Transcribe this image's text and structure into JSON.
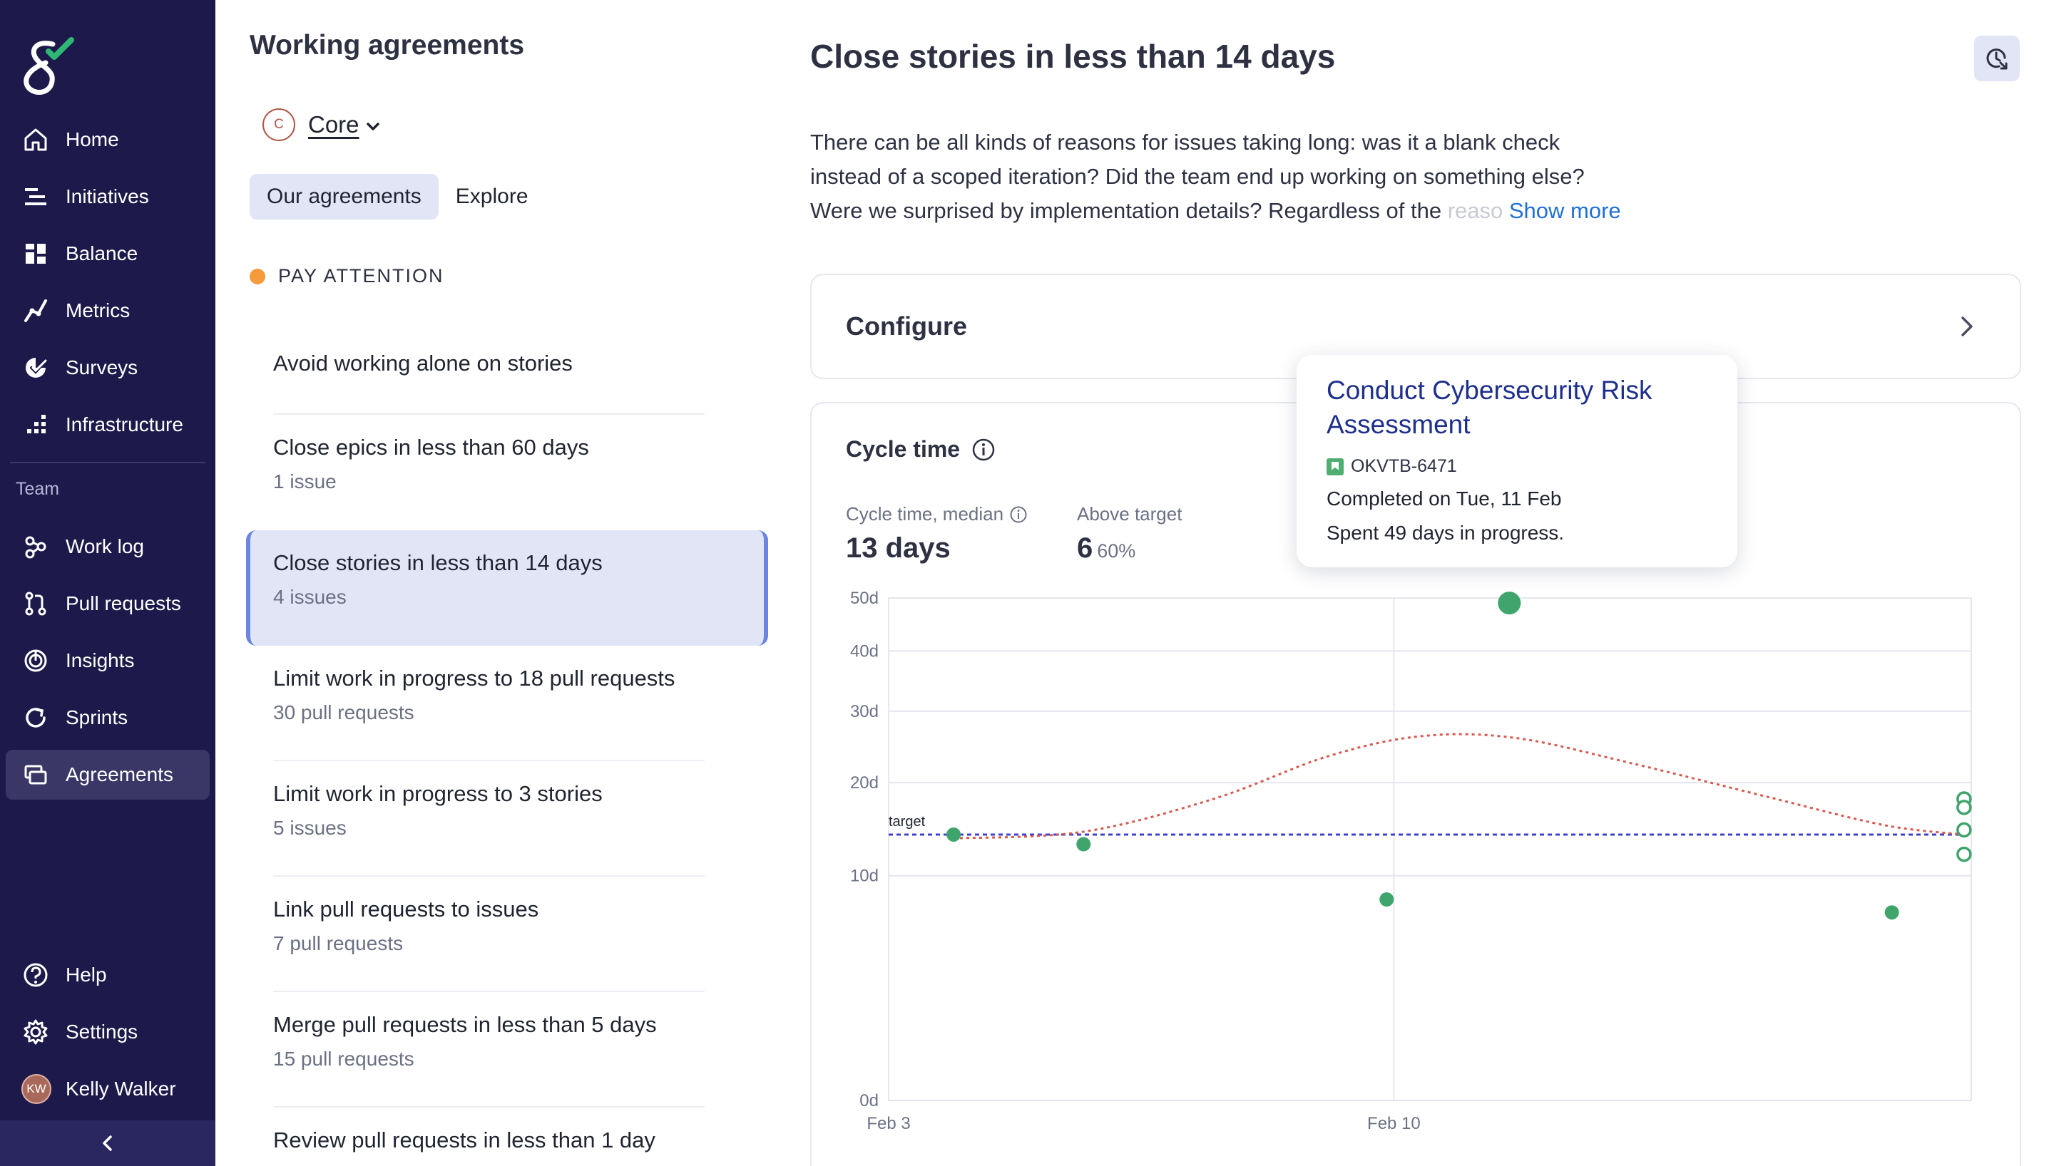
{
  "sidebar": {
    "nav": [
      {
        "label": "Home",
        "icon": "home-icon"
      },
      {
        "label": "Initiatives",
        "icon": "initiatives-icon"
      },
      {
        "label": "Balance",
        "icon": "balance-icon"
      },
      {
        "label": "Metrics",
        "icon": "metrics-icon"
      },
      {
        "label": "Surveys",
        "icon": "surveys-icon"
      },
      {
        "label": "Infrastructure",
        "icon": "infrastructure-icon"
      }
    ],
    "section_label": "Team",
    "team_nav": [
      {
        "label": "Work log",
        "icon": "work-log-icon"
      },
      {
        "label": "Pull requests",
        "icon": "pull-request-icon"
      },
      {
        "label": "Insights",
        "icon": "insights-icon"
      },
      {
        "label": "Sprints",
        "icon": "sprints-icon"
      },
      {
        "label": "Agreements",
        "icon": "agreements-icon",
        "active": true
      }
    ],
    "bottom": [
      {
        "label": "Help",
        "icon": "help-icon"
      },
      {
        "label": "Settings",
        "icon": "settings-icon"
      }
    ],
    "user": {
      "initials": "KW",
      "name": "Kelly Walker"
    },
    "colors": {
      "background": "#1d1a4b",
      "active": "#3a3766",
      "logo_accent": "#2fb874"
    }
  },
  "agreements_panel": {
    "title": "Working agreements",
    "team": {
      "initial": "C",
      "name": "Core"
    },
    "tabs": [
      {
        "label": "Our agreements",
        "active": true
      },
      {
        "label": "Explore",
        "active": false
      }
    ],
    "group_label": "PAY ATTENTION",
    "items": [
      {
        "title": "Avoid working alone on stories",
        "subtitle": ""
      },
      {
        "title": "Close epics in less than 60 days",
        "subtitle": "1 issue"
      },
      {
        "title": "Close stories in less than 14 days",
        "subtitle": "4 issues",
        "selected": true
      },
      {
        "title": "Limit work in progress to 18 pull requests",
        "subtitle": "30 pull requests"
      },
      {
        "title": "Limit work in progress to 3 stories",
        "subtitle": "5 issues"
      },
      {
        "title": "Link pull requests to issues",
        "subtitle": "7 pull requests"
      },
      {
        "title": "Merge pull requests in less than 5 days",
        "subtitle": "15 pull requests"
      },
      {
        "title": "Review pull requests in less than 1 day",
        "subtitle": ""
      }
    ]
  },
  "detail": {
    "title": "Close stories in less than 14 days",
    "description_lines": [
      "There can be all kinds of reasons for issues taking long: was it a blank check",
      "instead of a scoped iteration? Did the team end up working on something else?",
      "Were we surprised by implementation details? Regardless of the "
    ],
    "description_fade": "reaso",
    "show_more": "Show more",
    "configure_label": "Configure",
    "chart": {
      "title": "Cycle time",
      "stats": [
        {
          "label": "Cycle time, median",
          "value": "13 days"
        },
        {
          "label": "Above target",
          "value": "6",
          "pct": "60%"
        }
      ],
      "target_label": "target"
    },
    "tooltip": {
      "title": "Conduct Cybersecurity Risk Assessment",
      "key": "OKVTB-6471",
      "completed": "Completed on Tue, 11 Feb",
      "spent": "Spent 49 days in progress."
    }
  },
  "chart_data": {
    "type": "scatter",
    "title": "Cycle time",
    "y_scale": "sqrt",
    "ylim": [
      0,
      50
    ],
    "y_ticks": [
      {
        "value": 0,
        "label": "0d"
      },
      {
        "value": 10,
        "label": "10d"
      },
      {
        "value": 20,
        "label": "20d"
      },
      {
        "value": 30,
        "label": "30d"
      },
      {
        "value": 40,
        "label": "40d"
      },
      {
        "value": 50,
        "label": "50d"
      }
    ],
    "xlim": [
      3,
      18
    ],
    "x_ticks": [
      {
        "value": 3,
        "label": "Feb 3"
      },
      {
        "value": 10,
        "label": "Feb 10"
      }
    ],
    "target": 14,
    "completed_points": [
      {
        "x": 3.9,
        "y": 14
      },
      {
        "x": 5.7,
        "y": 13
      },
      {
        "x": 9.9,
        "y": 8
      },
      {
        "x": 11.6,
        "y": 49
      },
      {
        "x": 16.9,
        "y": 7
      }
    ],
    "in_progress_points": [
      {
        "x": 17.9,
        "y": 18
      },
      {
        "x": 17.9,
        "y": 17
      },
      {
        "x": 17.9,
        "y": 14.5
      },
      {
        "x": 17.9,
        "y": 12
      }
    ],
    "trend": [
      {
        "x": 3.9,
        "y": 13.6
      },
      {
        "x": 5.7,
        "y": 14.3
      },
      {
        "x": 7.5,
        "y": 18
      },
      {
        "x": 9.1,
        "y": 23.5
      },
      {
        "x": 10.4,
        "y": 26.3
      },
      {
        "x": 11.7,
        "y": 26
      },
      {
        "x": 13.3,
        "y": 22.5
      },
      {
        "x": 15.2,
        "y": 18.2
      },
      {
        "x": 16.8,
        "y": 15
      },
      {
        "x": 17.9,
        "y": 14
      }
    ],
    "colors": {
      "points": "#3fa56c",
      "target": "#4340c9",
      "trend": "#d65a4e",
      "grid": "#e4e6f0"
    }
  }
}
